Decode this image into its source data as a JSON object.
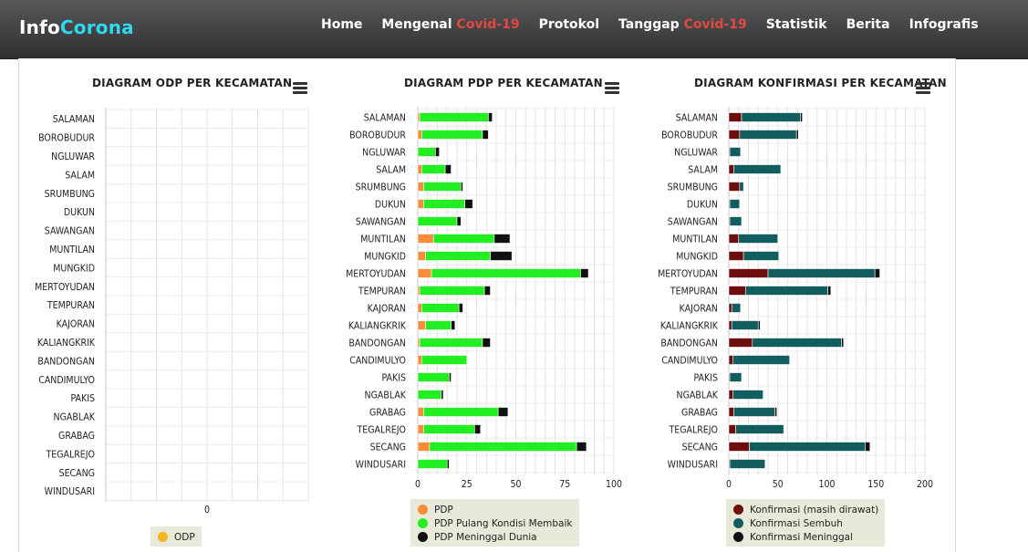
{
  "brand": {
    "part1": "Info",
    "part2": "Corona"
  },
  "nav": [
    {
      "label": "Home",
      "highlight": ""
    },
    {
      "label": "Mengenal ",
      "highlight": "Covid-19"
    },
    {
      "label": "Protokol",
      "highlight": ""
    },
    {
      "label": "Tanggap ",
      "highlight": "Covid-19"
    },
    {
      "label": "Statistik",
      "highlight": ""
    },
    {
      "label": "Berita",
      "highlight": ""
    },
    {
      "label": "Infografis",
      "highlight": ""
    }
  ],
  "colors": {
    "accent_brand": "#2cd9ee",
    "nav_highlight": "#e2493c",
    "odp": "#f5b51c",
    "pdp": "#f78d3a",
    "pdp_membaik": "#22ee22",
    "pdp_meninggal": "#111111",
    "konf_dirawat": "#6e0d0d",
    "konf_sembuh": "#125e5e",
    "konf_meninggal": "#111111"
  },
  "chart_data": [
    {
      "type": "bar",
      "orientation": "horizontal",
      "stacked": true,
      "title": "DIAGRAM ODP PER KECAMATAN",
      "categories": [
        "SALAMAN",
        "BOROBUDUR",
        "NGLUWAR",
        "SALAM",
        "SRUMBUNG",
        "DUKUN",
        "SAWANGAN",
        "MUNTILAN",
        "MUNGKID",
        "MERTOYUDAN",
        "TEMPURAN",
        "KAJORAN",
        "KALIANGKRIK",
        "BANDONGAN",
        "CANDIMULYO",
        "PAKIS",
        "NGABLAK",
        "GRABAG",
        "TEGALREJO",
        "SECANG",
        "WINDUSARI"
      ],
      "xticks": [
        "0"
      ],
      "grid": true,
      "legend_position": "bottom",
      "series": [
        {
          "name": "ODP",
          "color": "#f5b51c",
          "values": [
            0,
            0,
            0,
            0,
            0,
            0,
            0,
            0,
            0,
            0,
            0,
            0,
            0,
            0,
            0,
            0,
            0,
            0,
            0,
            0,
            0
          ]
        }
      ]
    },
    {
      "type": "bar",
      "orientation": "horizontal",
      "stacked": true,
      "title": "DIAGRAM PDP PER KECAMATAN",
      "categories": [
        "SALAMAN",
        "BOROBUDUR",
        "NGLUWAR",
        "SALAM",
        "SRUMBUNG",
        "DUKUN",
        "SAWANGAN",
        "MUNTILAN",
        "MUNGKID",
        "MERTOYUDAN",
        "TEMPURAN",
        "KAJORAN",
        "KALIANGKRIK",
        "BANDONGAN",
        "CANDIMULYO",
        "PAKIS",
        "NGABLAK",
        "GRABAG",
        "TEGALREJO",
        "SECANG",
        "WINDUSARI"
      ],
      "xlim": [
        0,
        100
      ],
      "xticks": [
        "0",
        "25",
        "50",
        "75",
        "100"
      ],
      "grid": true,
      "legend_position": "bottom",
      "series": [
        {
          "name": "PDP",
          "color": "#f78d3a",
          "values": [
            1,
            2,
            0,
            2,
            3,
            3,
            0,
            8,
            4,
            7,
            1,
            2,
            4,
            1,
            2,
            0,
            0,
            3,
            3,
            6,
            0
          ]
        },
        {
          "name": "PDP Pulang Kondisi Membaik",
          "color": "#22ee22",
          "values": [
            35,
            31,
            9,
            12,
            19,
            21,
            20,
            31,
            33,
            76,
            33,
            19,
            13,
            32,
            23,
            16,
            12,
            38,
            26,
            75,
            15
          ]
        },
        {
          "name": "PDP Meninggal Dunia",
          "color": "#111111",
          "values": [
            2,
            3,
            2,
            3,
            1,
            4,
            2,
            8,
            11,
            4,
            3,
            2,
            2,
            4,
            0,
            1,
            1,
            5,
            3,
            5,
            1
          ]
        }
      ]
    },
    {
      "type": "bar",
      "orientation": "horizontal",
      "stacked": true,
      "title": "DIAGRAM KONFIRMASI PER KECAMATAN",
      "categories": [
        "SALAMAN",
        "BOROBUDUR",
        "NGLUWAR",
        "SALAM",
        "SRUMBUNG",
        "DUKUN",
        "SAWANGAN",
        "MUNTILAN",
        "MUNGKID",
        "MERTOYUDAN",
        "TEMPURAN",
        "KAJORAN",
        "KALIANGKRIK",
        "BANDONGAN",
        "CANDIMULYO",
        "PAKIS",
        "NGABLAK",
        "GRABAG",
        "TEGALREJO",
        "SECANG",
        "WINDUSARI"
      ],
      "xlim": [
        0,
        200
      ],
      "xticks": [
        "0",
        "50",
        "100",
        "150",
        "200"
      ],
      "grid": true,
      "legend_position": "bottom",
      "series": [
        {
          "name": "Konfirmasi (masih dirawat)",
          "color": "#6e0d0d",
          "values": [
            13,
            11,
            1,
            5,
            11,
            1,
            1,
            10,
            15,
            40,
            17,
            3,
            3,
            24,
            4,
            1,
            4,
            5,
            7,
            21,
            1
          ]
        },
        {
          "name": "Konfirmasi Sembuh",
          "color": "#125e5e",
          "values": [
            60,
            58,
            11,
            48,
            4,
            10,
            12,
            40,
            36,
            109,
            84,
            9,
            27,
            91,
            58,
            12,
            31,
            42,
            49,
            118,
            36
          ]
        },
        {
          "name": "Konfirmasi Meninggal",
          "color": "#111111",
          "values": [
            2,
            2,
            0,
            0,
            0,
            0,
            0,
            0,
            0,
            5,
            3,
            0,
            2,
            2,
            0,
            0,
            0,
            2,
            0,
            5,
            0
          ]
        }
      ]
    }
  ]
}
